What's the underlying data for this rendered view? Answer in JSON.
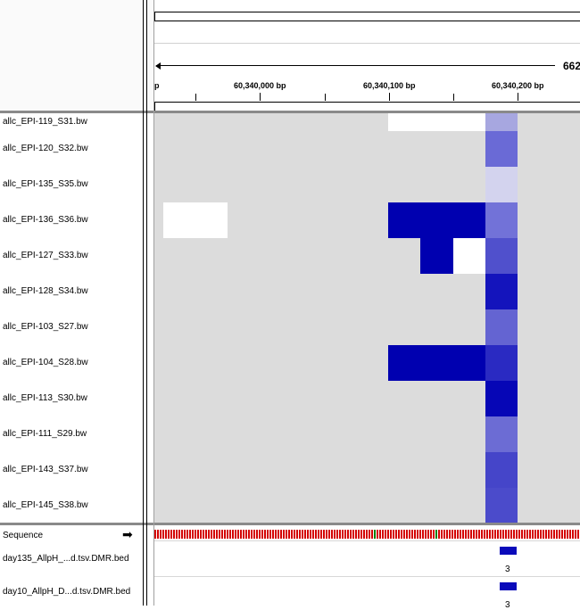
{
  "ruler": {
    "locus_partial": "662",
    "left_edge_label": "p",
    "ticks": [
      "60,340,000 bp",
      "60,340,100 bp",
      "60,340,200 bp"
    ]
  },
  "tracks": [
    "allc_EPI-119_S31.bw",
    "allc_EPI-120_S32.bw",
    "allc_EPI-135_S35.bw",
    "allc_EPI-136_S36.bw",
    "allc_EPI-127_S33.bw",
    "allc_EPI-128_S34.bw",
    "allc_EPI-103_S27.bw",
    "allc_EPI-104_S28.bw",
    "allc_EPI-113_S30.bw",
    "allc_EPI-111_S29.bw",
    "allc_EPI-143_S37.bw",
    "allc_EPI-145_S38.bw"
  ],
  "highlight_column_colors": [
    "#a7a7e0",
    "#6a6ad6",
    "#d3d3ee",
    "#7272d8",
    "#5050cc",
    "#1414bc",
    "#6464d2",
    "#2a2ac2",
    "#0606b6",
    "#6c6cd4",
    "#4545c9",
    "#4b4bcb"
  ],
  "colors": {
    "panel_bg": "#dcdcdc",
    "high_methylation": "#0000b0",
    "dmr_feature": "#0a0aba"
  },
  "lower_panel": {
    "sequence_label": "Sequence",
    "sequence_arrow": "➡",
    "bed_tracks": [
      {
        "label": "day135_AllpH_...d.tsv.DMR.bed",
        "feature_count": "3"
      },
      {
        "label": "day10_AllpH_D...d.tsv.DMR.bed",
        "feature_count": "3"
      }
    ]
  }
}
